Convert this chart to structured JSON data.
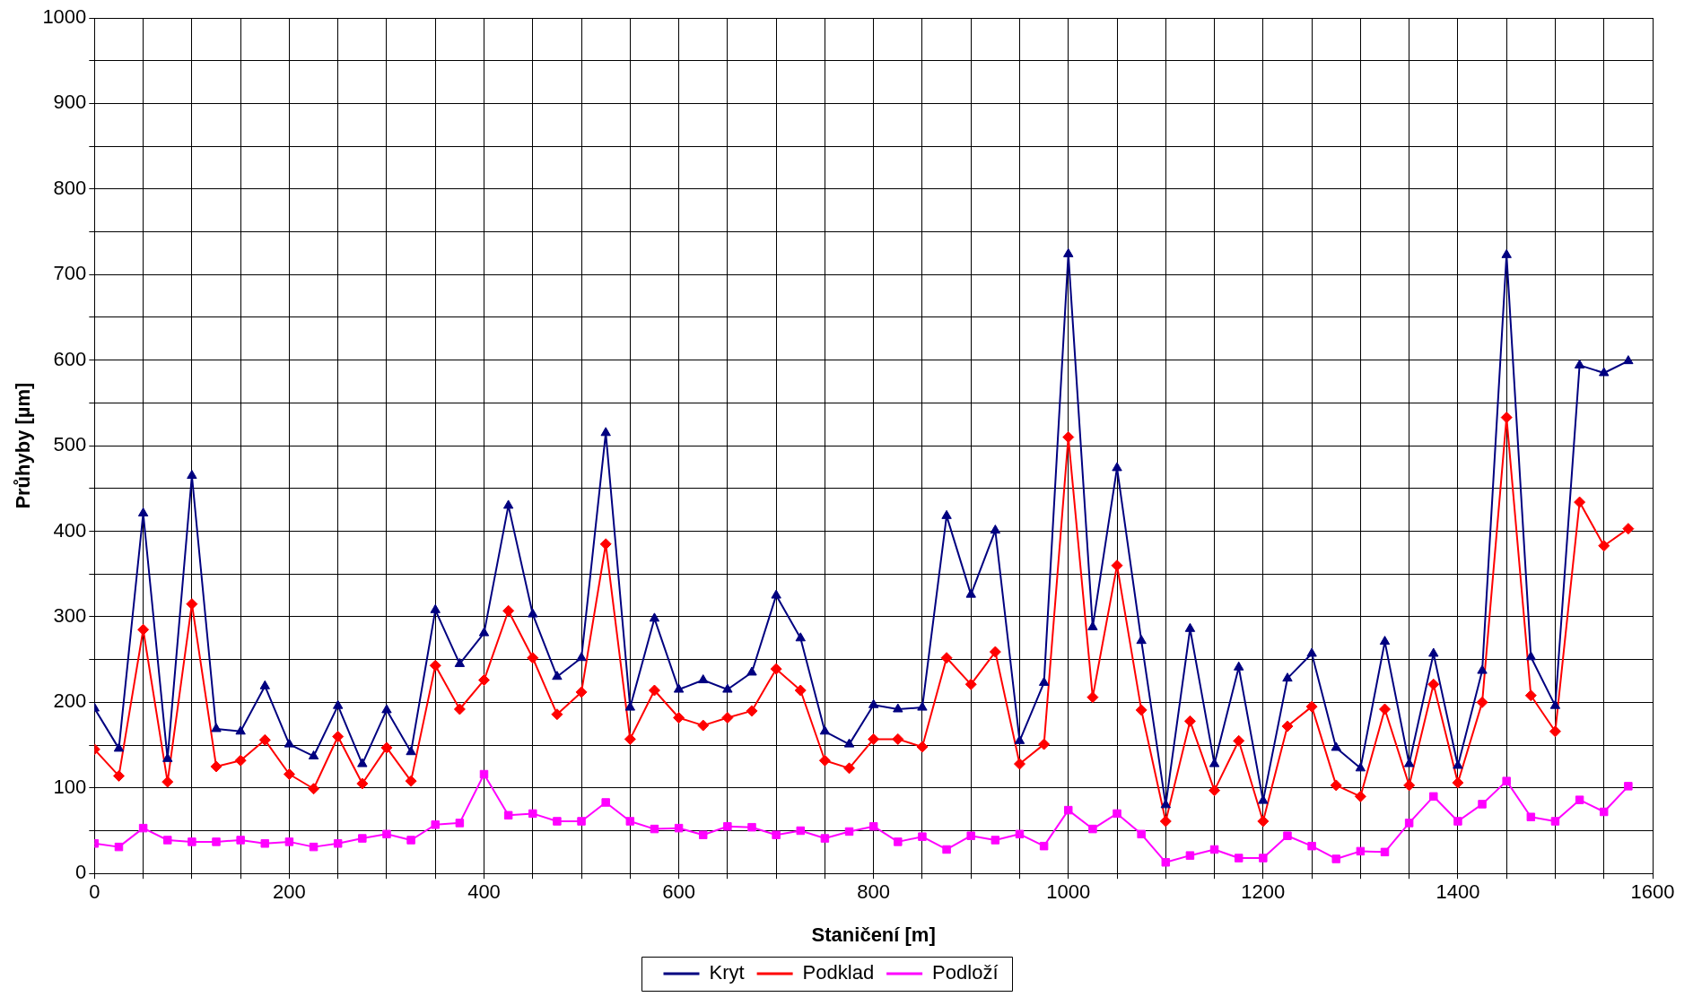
{
  "chart_data": {
    "type": "line",
    "xlabel": "Staničení [m]",
    "ylabel": "Průhyby [µm]",
    "x": [
      0,
      25,
      50,
      75,
      100,
      125,
      150,
      175,
      200,
      225,
      250,
      275,
      300,
      325,
      350,
      375,
      400,
      425,
      450,
      475,
      500,
      525,
      550,
      575,
      600,
      625,
      650,
      675,
      700,
      725,
      750,
      775,
      800,
      825,
      850,
      875,
      900,
      925,
      950,
      975,
      1000,
      1025,
      1050,
      1075,
      1100,
      1125,
      1150,
      1175,
      1200,
      1225,
      1250,
      1275,
      1300,
      1325,
      1350,
      1375,
      1400,
      1425,
      1450,
      1475,
      1500,
      1525,
      1550,
      1575
    ],
    "series": [
      {
        "name": "Kryt",
        "color": "#000080",
        "marker": "triangle",
        "values": [
          193,
          146,
          421,
          134,
          465,
          169,
          166,
          219,
          151,
          137,
          196,
          128,
          191,
          142,
          308,
          245,
          281,
          430,
          303,
          230,
          252,
          515,
          194,
          298,
          215,
          226,
          215,
          235,
          325,
          275,
          166,
          151,
          197,
          192,
          194,
          418,
          326,
          401,
          155,
          223,
          724,
          288,
          474,
          272,
          80,
          286,
          128,
          241,
          85,
          228,
          257,
          147,
          123,
          271,
          128,
          257,
          126,
          237,
          723,
          253,
          196,
          594,
          585,
          599
        ]
      },
      {
        "name": "Podklad",
        "color": "#ff0000",
        "marker": "diamond",
        "values": [
          145,
          114,
          285,
          107,
          315,
          125,
          132,
          156,
          116,
          99,
          160,
          105,
          147,
          108,
          243,
          192,
          226,
          307,
          252,
          186,
          212,
          385,
          157,
          214,
          182,
          173,
          182,
          190,
          239,
          214,
          132,
          123,
          157,
          157,
          148,
          252,
          221,
          259,
          128,
          151,
          510,
          206,
          360,
          191,
          61,
          178,
          97,
          155,
          61,
          172,
          195,
          103,
          90,
          192,
          103,
          221,
          106,
          200,
          533,
          208,
          166,
          434,
          383,
          403
        ]
      },
      {
        "name": "Podloží",
        "color": "#ff00ff",
        "marker": "square",
        "values": [
          35,
          31,
          53,
          39,
          37,
          37,
          39,
          35,
          37,
          31,
          35,
          41,
          46,
          39,
          57,
          59,
          116,
          68,
          70,
          61,
          61,
          83,
          61,
          52,
          53,
          45,
          55,
          54,
          45,
          50,
          41,
          49,
          55,
          37,
          43,
          28,
          44,
          39,
          46,
          32,
          74,
          52,
          70,
          46,
          13,
          21,
          28,
          18,
          18,
          44,
          32,
          17,
          26,
          25,
          59,
          90,
          61,
          81,
          108,
          66,
          61,
          86,
          72,
          102
        ]
      }
    ],
    "xlim": [
      0,
      1600
    ],
    "xticks": [
      0,
      {
        "value": 50,
        "label": null
      },
      {
        "value": 100,
        "label": null
      },
      {
        "value": 150,
        "label": null
      },
      200,
      {
        "value": 250,
        "label": null
      },
      {
        "value": 300,
        "label": null
      },
      {
        "value": 350,
        "label": null
      },
      400,
      {
        "value": 450,
        "label": null
      },
      {
        "value": 500,
        "label": null
      },
      {
        "value": 550,
        "label": null
      },
      600,
      {
        "value": 650,
        "label": null
      },
      {
        "value": 700,
        "label": null
      },
      {
        "value": 750,
        "label": null
      },
      800,
      {
        "value": 850,
        "label": null
      },
      {
        "value": 900,
        "label": null
      },
      {
        "value": 950,
        "label": null
      },
      1000,
      {
        "value": 1050,
        "label": null
      },
      {
        "value": 1100,
        "label": null
      },
      {
        "value": 1150,
        "label": null
      },
      1200,
      {
        "value": 1250,
        "label": null
      },
      {
        "value": 1300,
        "label": null
      },
      {
        "value": 1350,
        "label": null
      },
      1400,
      {
        "value": 1450,
        "label": null
      },
      {
        "value": 1500,
        "label": null
      },
      {
        "value": 1550,
        "label": null
      },
      1600
    ],
    "ylim": [
      0,
      1000
    ],
    "yticks": [
      0,
      {
        "value": 50,
        "label": null
      },
      100,
      {
        "value": 150,
        "label": null
      },
      200,
      {
        "value": 250,
        "label": null
      },
      300,
      {
        "value": 350,
        "label": null
      },
      400,
      {
        "value": 450,
        "label": null
      },
      500,
      {
        "value": 550,
        "label": null
      },
      600,
      {
        "value": 650,
        "label": null
      },
      700,
      {
        "value": 750,
        "label": null
      },
      800,
      {
        "value": 850,
        "label": null
      },
      900,
      {
        "value": 950,
        "label": null
      },
      1000
    ],
    "grid": true,
    "legend": "bottom",
    "line_style": "solid"
  }
}
